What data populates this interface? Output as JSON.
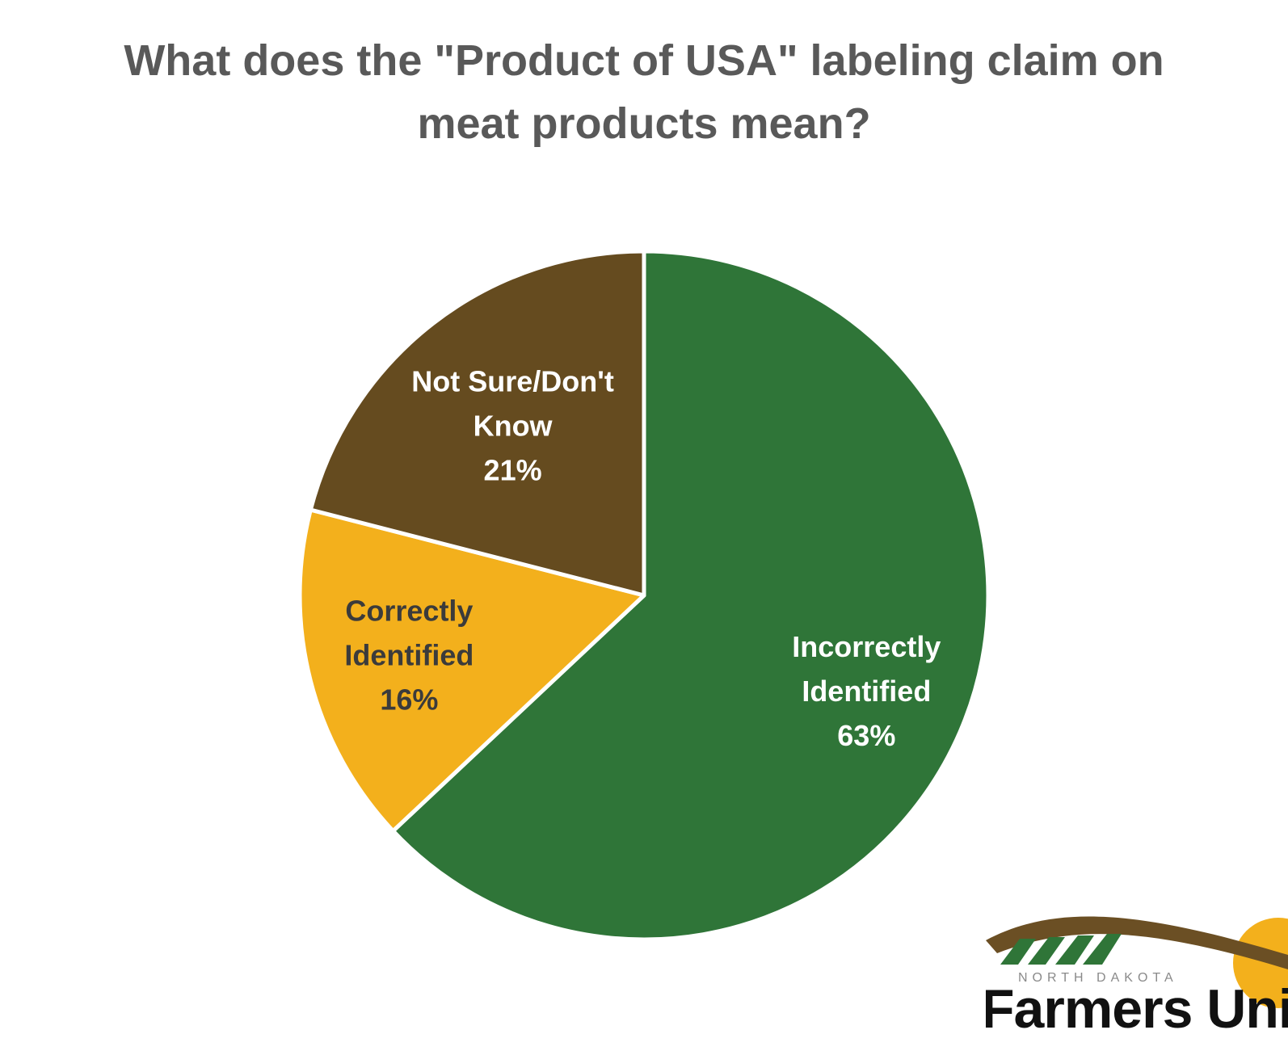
{
  "chart_data": {
    "type": "pie",
    "title": "What does the \"Product of USA\" labeling claim on meat products mean?",
    "slices": [
      {
        "label_lines": [
          "Incorrectly",
          "Identified",
          "63%"
        ],
        "value": 63,
        "color": "#2f7538",
        "text_color": "#ffffff"
      },
      {
        "label_lines": [
          "Correctly",
          "Identified",
          "16%"
        ],
        "value": 16,
        "color": "#f3b01c",
        "text_color": "#3b3b3b"
      },
      {
        "label_lines": [
          "Not Sure/Don't",
          "Know",
          "21%"
        ],
        "value": 21,
        "color": "#654b1f",
        "text_color": "#ffffff"
      }
    ],
    "start": "12 o'clock",
    "direction": "clockwise"
  },
  "logo": {
    "name": "North Dakota Farmers Union",
    "small_text": "NORTH DAKOTA",
    "big_text": "Farmers Uni"
  }
}
